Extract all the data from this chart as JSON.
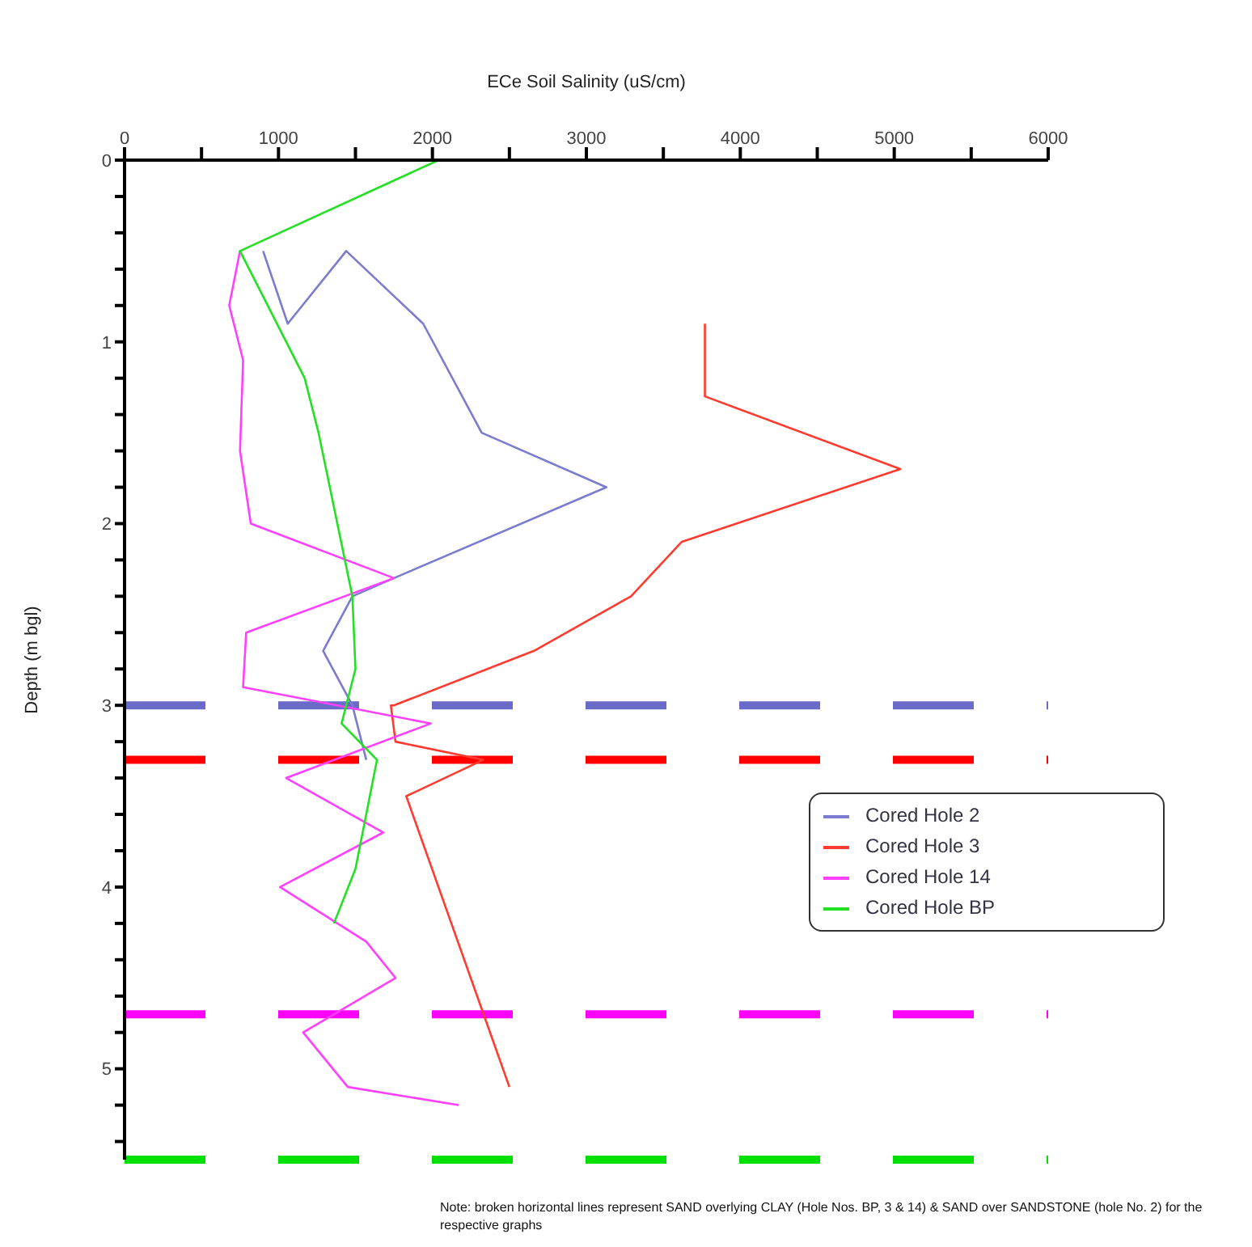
{
  "chart_data": {
    "type": "line",
    "xlabel": "ECe Soil Salinity (uS/cm)",
    "ylabel": "Depth (m bgl)",
    "xlim": [
      0,
      6000
    ],
    "xticks": [
      0,
      {
        "value": 500,
        "label": null
      },
      1000,
      {
        "value": 1500,
        "label": null
      },
      2000,
      {
        "value": 2500,
        "label": null
      },
      3000,
      {
        "value": 3500,
        "label": null
      },
      4000,
      {
        "value": 4500,
        "label": null
      },
      5000,
      {
        "value": 5500,
        "label": null
      },
      6000
    ],
    "ylim": [
      5.5,
      0
    ],
    "yticks": [
      0,
      {
        "value": 0.2,
        "label": null
      },
      {
        "value": 0.4,
        "label": null
      },
      {
        "value": 0.6,
        "label": null
      },
      {
        "value": 0.8,
        "label": null
      },
      1,
      {
        "value": 1.2,
        "label": null
      },
      {
        "value": 1.4,
        "label": null
      },
      {
        "value": 1.6,
        "label": null
      },
      {
        "value": 1.8,
        "label": null
      },
      2,
      {
        "value": 2.2,
        "label": null
      },
      {
        "value": 2.4,
        "label": null
      },
      {
        "value": 2.6,
        "label": null
      },
      {
        "value": 2.8,
        "label": null
      },
      3,
      {
        "value": 3.2,
        "label": null
      },
      {
        "value": 3.4,
        "label": null
      },
      {
        "value": 3.6,
        "label": null
      },
      {
        "value": 3.8,
        "label": null
      },
      4,
      {
        "value": 4.2,
        "label": null
      },
      {
        "value": 4.4,
        "label": null
      },
      {
        "value": 4.6,
        "label": null
      },
      {
        "value": 4.8,
        "label": null
      },
      5,
      {
        "value": 5.2,
        "label": null
      },
      {
        "value": 5.4,
        "label": null
      }
    ],
    "grid": false,
    "legend": "right",
    "marker": "none",
    "line_style": "solid",
    "series": [
      {
        "name": "Cored Hole 2",
        "color": "#7b7bd0",
        "x": [
          900,
          1060,
          1440,
          1940,
          2320,
          3130,
          1750,
          1480,
          1290,
          1480,
          1570
        ],
        "values": [
          0.5,
          0.9,
          0.5,
          0.9,
          1.5,
          1.8,
          2.3,
          2.4,
          2.7,
          3.0,
          3.3
        ]
      },
      {
        "name": "Cored Hole 3",
        "color": "#ff3b30",
        "x": [
          3770,
          3770,
          5040,
          3620,
          3290,
          2660,
          1750,
          1730,
          1760,
          2330,
          1830,
          2500
        ],
        "values": [
          0.9,
          1.3,
          1.7,
          2.1,
          2.4,
          2.7,
          3.0,
          3.0,
          3.2,
          3.3,
          3.5,
          5.1
        ]
      },
      {
        "name": "Cored Hole 14",
        "color": "#ff40ff",
        "x": [
          750,
          680,
          770,
          750,
          820,
          1750,
          790,
          770,
          1990,
          1050,
          1680,
          1010,
          1570,
          1760,
          1160,
          1450,
          2170
        ],
        "values": [
          0.5,
          0.8,
          1.1,
          1.6,
          2.0,
          2.3,
          2.6,
          2.9,
          3.1,
          3.4,
          3.7,
          4.0,
          4.3,
          4.5,
          4.8,
          5.1,
          5.2
        ]
      },
      {
        "name": "Cored Hole BP",
        "color": "#22e022",
        "x": [
          2040,
          750,
          1170,
          1260,
          1480,
          1500,
          1410,
          1640,
          1500,
          1360
        ],
        "values": [
          0.0,
          0.5,
          1.2,
          1.5,
          2.4,
          2.8,
          3.1,
          3.3,
          3.9,
          4.2
        ]
      }
    ],
    "ref_lines": [
      {
        "axis": "y",
        "value": 3.0,
        "color": "#6a6ac8",
        "line_style": "dashed"
      },
      {
        "axis": "y",
        "value": 3.3,
        "color": "#ff0000",
        "line_style": "dashed"
      },
      {
        "axis": "y",
        "value": 4.7,
        "color": "#ff00ff",
        "line_style": "dashed"
      },
      {
        "axis": "y",
        "value": 5.5,
        "color": "#00e000",
        "line_style": "dashed"
      }
    ],
    "annotations": [
      "Note: broken horizontal lines represent SAND overlying CLAY (Hole Nos. BP, 3 & 14) & SAND over SANDSTONE (hole No. 2) for the respective graphs"
    ]
  }
}
